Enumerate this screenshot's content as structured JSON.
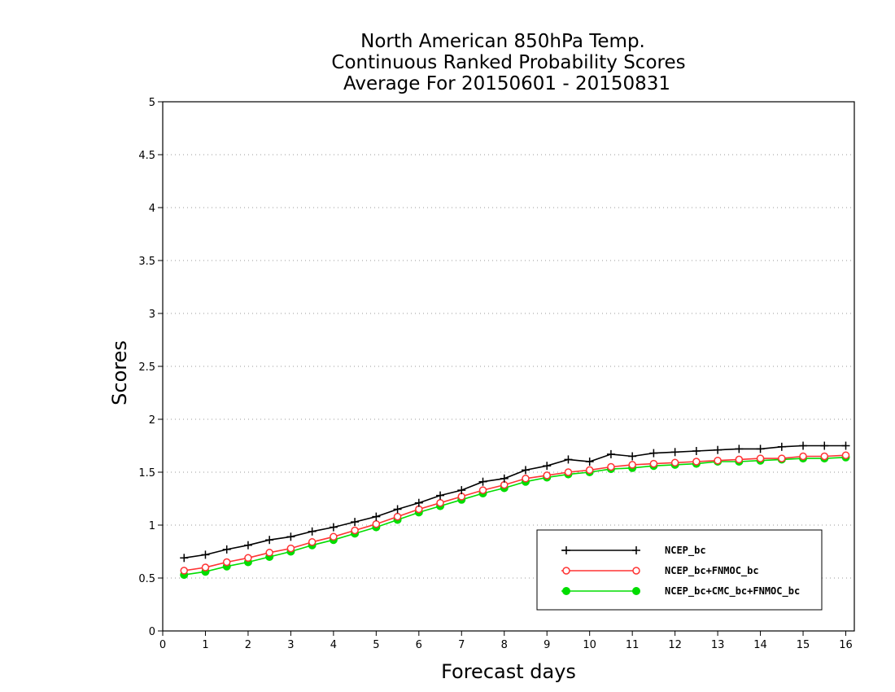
{
  "chart_data": {
    "type": "line",
    "title": [
      "North American 850hPa Temp.",
      "Continuous Ranked Probability Scores",
      "Average For 20150601 - 20150831"
    ],
    "xlabel": "Forecast days",
    "ylabel": "Scores",
    "xlim": [
      0,
      16.2
    ],
    "ylim": [
      0,
      5
    ],
    "xticks": [
      0,
      1,
      2,
      3,
      4,
      5,
      6,
      7,
      8,
      9,
      10,
      11,
      12,
      13,
      14,
      15,
      16
    ],
    "xtick_labels": [
      "0",
      "1",
      "2",
      "3",
      "4",
      "5",
      "6",
      "7",
      "8",
      "9",
      "10",
      "11",
      "12",
      "13",
      "14",
      "15",
      "16"
    ],
    "yticks": [
      0,
      0.5,
      1,
      1.5,
      2,
      2.5,
      3,
      3.5,
      4,
      4.5,
      5
    ],
    "ytick_labels": [
      "0",
      "0.5",
      "1",
      "1.5",
      "2",
      "2.5",
      "3",
      "3.5",
      "4",
      "4.5",
      "5"
    ],
    "grid": "horizontal dotted",
    "legend_position": "bottom-right",
    "x": [
      0.5,
      1,
      1.5,
      2,
      2.5,
      3,
      3.5,
      4,
      4.5,
      5,
      5.5,
      6,
      6.5,
      7,
      7.5,
      8,
      8.5,
      9,
      9.5,
      10,
      10.5,
      11,
      11.5,
      12,
      12.5,
      13,
      13.5,
      14,
      14.5,
      15,
      15.5,
      16
    ],
    "series": [
      {
        "name": "NCEP_bc",
        "color": "#000000",
        "marker": "plus",
        "values": [
          0.69,
          0.72,
          0.77,
          0.81,
          0.86,
          0.89,
          0.94,
          0.98,
          1.03,
          1.08,
          1.15,
          1.21,
          1.28,
          1.33,
          1.41,
          1.44,
          1.52,
          1.56,
          1.62,
          1.6,
          1.67,
          1.65,
          1.68,
          1.69,
          1.7,
          1.71,
          1.72,
          1.72,
          1.74,
          1.75,
          1.75,
          1.75
        ]
      },
      {
        "name": "NCEP_bc+FNMOC_bc",
        "color": "#ff3333",
        "marker": "open-circle",
        "values": [
          0.57,
          0.6,
          0.65,
          0.69,
          0.74,
          0.78,
          0.84,
          0.89,
          0.95,
          1.01,
          1.08,
          1.15,
          1.21,
          1.27,
          1.33,
          1.38,
          1.44,
          1.47,
          1.5,
          1.52,
          1.55,
          1.57,
          1.58,
          1.59,
          1.6,
          1.61,
          1.62,
          1.63,
          1.63,
          1.65,
          1.65,
          1.66
        ]
      },
      {
        "name": "NCEP_bc+CMC_bc+FNMOC_bc",
        "color": "#00dd00",
        "marker": "filled-circle",
        "values": [
          0.53,
          0.56,
          0.61,
          0.65,
          0.7,
          0.75,
          0.81,
          0.86,
          0.92,
          0.98,
          1.05,
          1.12,
          1.18,
          1.24,
          1.3,
          1.35,
          1.41,
          1.45,
          1.48,
          1.5,
          1.53,
          1.54,
          1.56,
          1.57,
          1.58,
          1.6,
          1.6,
          1.61,
          1.62,
          1.63,
          1.63,
          1.64
        ]
      }
    ]
  }
}
